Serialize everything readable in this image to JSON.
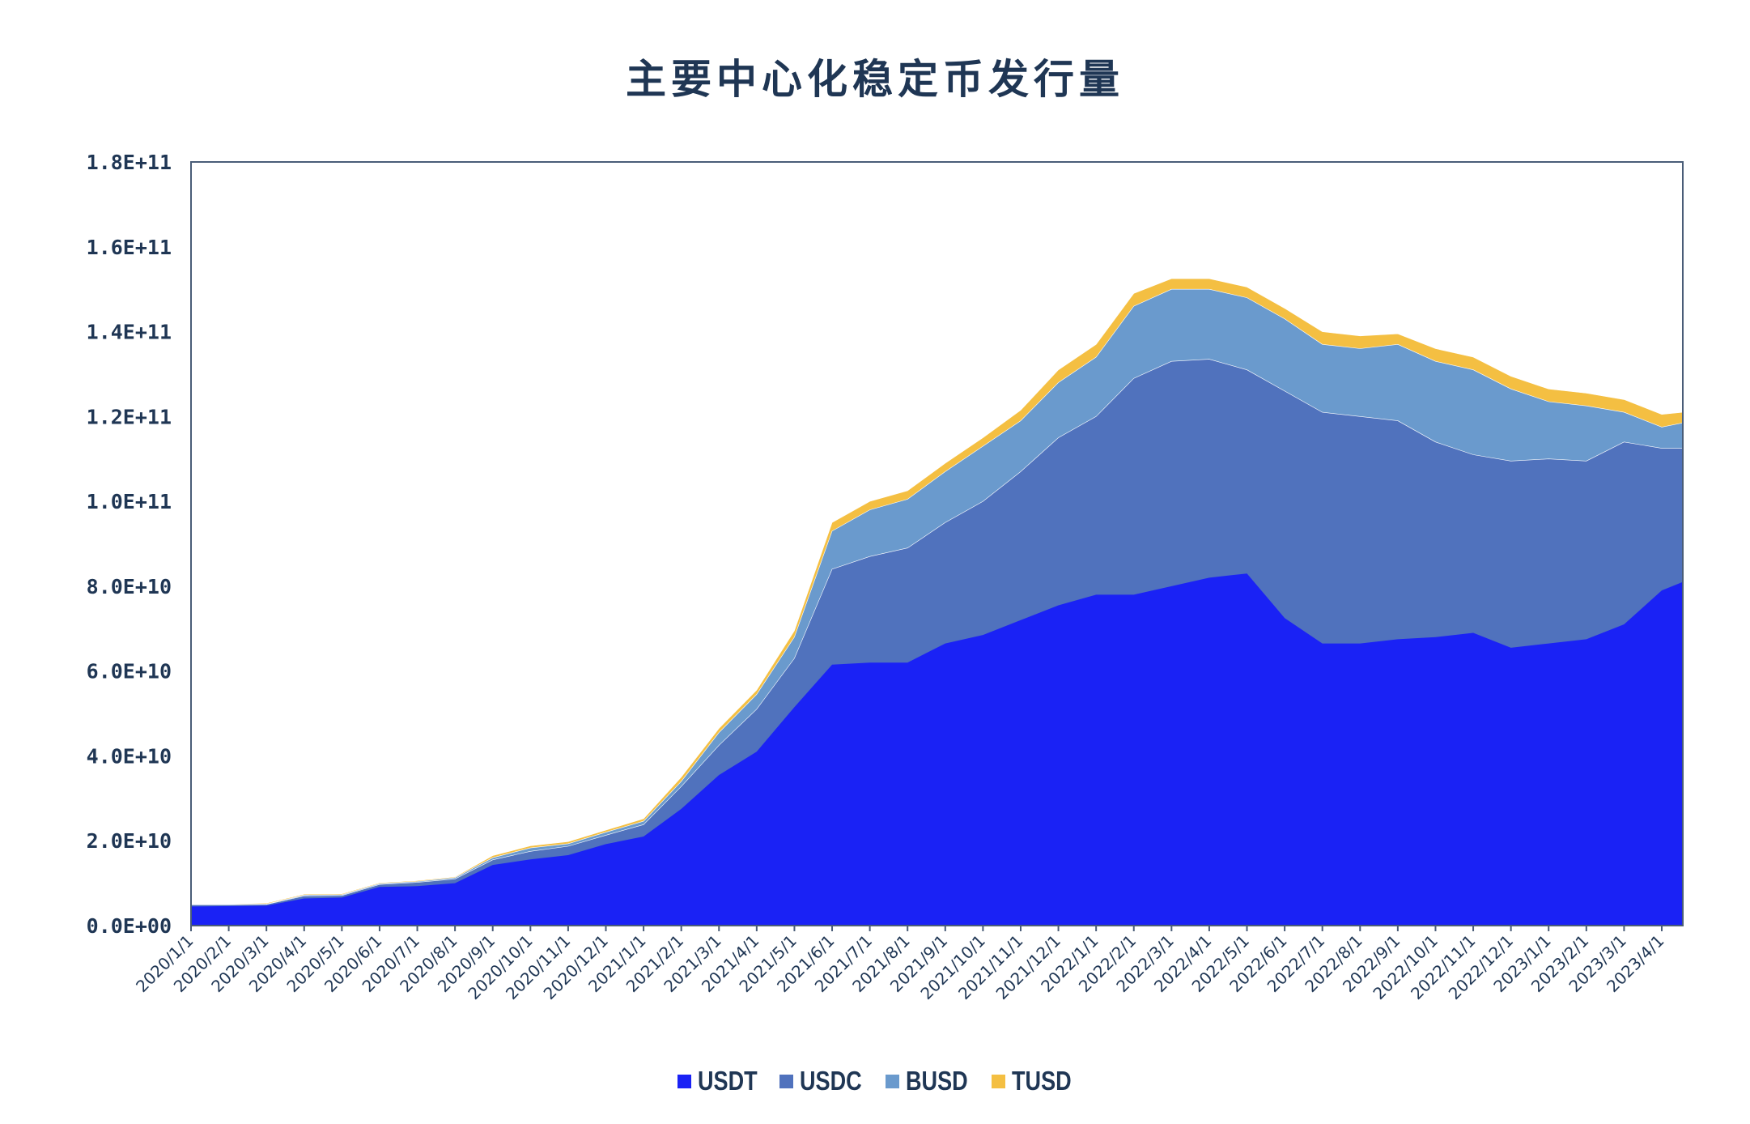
{
  "title": "主要中心化稳定币发行量",
  "colors": {
    "USDT": "#1a22f5",
    "USDC": "#5072bd",
    "BUSD": "#6a9acd",
    "TUSD": "#f4bf42",
    "axis": "#4a5d78",
    "text": "#1f3654"
  },
  "legend": [
    {
      "name": "USDT",
      "color": "#1a22f5"
    },
    {
      "name": "USDC",
      "color": "#5072bd"
    },
    {
      "name": "BUSD",
      "color": "#6a9acd"
    },
    {
      "name": "TUSD",
      "color": "#f4bf42"
    }
  ],
  "y_ticks": [
    "0.0E+00",
    "2.0E+10",
    "4.0E+10",
    "6.0E+10",
    "8.0E+10",
    "1.0E+11",
    "1.2E+11",
    "1.4E+11",
    "1.6E+11",
    "1.8E+11"
  ],
  "x_ticks": [
    "2020/1/1",
    "2020/2/1",
    "2020/3/1",
    "2020/4/1",
    "2020/5/1",
    "2020/6/1",
    "2020/7/1",
    "2020/8/1",
    "2020/9/1",
    "2020/10/1",
    "2020/11/1",
    "2020/12/1",
    "2021/1/1",
    "2021/2/1",
    "2021/3/1",
    "2021/4/1",
    "2021/5/1",
    "2021/6/1",
    "2021/7/1",
    "2021/8/1",
    "2021/9/1",
    "2021/10/1",
    "2021/11/1",
    "2021/12/1",
    "2022/1/1",
    "2022/2/1",
    "2022/3/1",
    "2022/4/1",
    "2022/5/1",
    "2022/6/1",
    "2022/7/1",
    "2022/8/1",
    "2022/9/1",
    "2022/10/1",
    "2022/11/1",
    "2022/12/1",
    "2023/1/1",
    "2023/2/1",
    "2023/3/1",
    "2023/4/1"
  ],
  "chart_data": {
    "type": "area",
    "stacked": true,
    "title": "主要中心化稳定币发行量",
    "xlabel": "",
    "ylabel": "",
    "ylim": [
      0,
      180000000000
    ],
    "grid": false,
    "legend_position": "bottom",
    "unit_note": "series values below in billions (1e9 USD)",
    "x": [
      "2020/1/1",
      "2020/2/1",
      "2020/3/1",
      "2020/4/1",
      "2020/5/1",
      "2020/6/1",
      "2020/7/1",
      "2020/8/1",
      "2020/9/1",
      "2020/10/1",
      "2020/11/1",
      "2020/12/1",
      "2021/1/1",
      "2021/2/1",
      "2021/3/1",
      "2021/4/1",
      "2021/5/1",
      "2021/6/1",
      "2021/7/1",
      "2021/8/1",
      "2021/9/1",
      "2021/10/1",
      "2021/11/1",
      "2021/12/1",
      "2022/1/1",
      "2022/2/1",
      "2022/3/1",
      "2022/4/1",
      "2022/5/1",
      "2022/6/1",
      "2022/7/1",
      "2022/8/1",
      "2022/9/1",
      "2022/10/1",
      "2022/11/1",
      "2022/12/1",
      "2023/1/1",
      "2023/2/1",
      "2023/3/1",
      "2023/4/1",
      "2023/4/19"
    ],
    "series": [
      {
        "name": "USDT",
        "values": [
          4.5,
          4.6,
          4.7,
          6.4,
          6.6,
          9.1,
          9.3,
          10.0,
          14.3,
          15.6,
          16.6,
          19.2,
          21.0,
          27.5,
          35.5,
          41.0,
          51.5,
          61.5,
          62.0,
          62.0,
          66.5,
          68.5,
          72.0,
          75.5,
          78.0,
          78.0,
          80.0,
          82.0,
          83.0,
          72.5,
          66.5,
          66.5,
          67.5,
          68.0,
          69.0,
          65.5,
          66.5,
          67.5,
          71.0,
          79.0,
          81.0
        ]
      },
      {
        "name": "USDC",
        "values": [
          0.4,
          0.3,
          0.3,
          0.6,
          0.5,
          0.6,
          0.9,
          1.0,
          1.2,
          1.9,
          2.1,
          2.1,
          2.8,
          5.3,
          7.0,
          10.0,
          11.5,
          22.5,
          25.0,
          27.0,
          28.5,
          31.5,
          35.0,
          39.5,
          42.0,
          51.0,
          53.0,
          51.5,
          48.0,
          53.5,
          54.5,
          53.5,
          51.5,
          46.0,
          42.0,
          44.0,
          43.5,
          42.0,
          43.0,
          33.5,
          31.5
        ]
      },
      {
        "name": "BUSD",
        "values": [
          0.1,
          0.1,
          0.1,
          0.2,
          0.2,
          0.2,
          0.2,
          0.3,
          0.5,
          0.8,
          0.6,
          0.7,
          0.8,
          1.2,
          3.0,
          3.5,
          5.0,
          9.0,
          11.0,
          11.5,
          12.0,
          13.0,
          12.0,
          13.0,
          14.0,
          17.0,
          17.0,
          16.5,
          17.0,
          17.0,
          16.0,
          16.0,
          18.0,
          19.0,
          20.0,
          17.0,
          13.5,
          13.0,
          7.0,
          5.0,
          6.0
        ]
      },
      {
        "name": "TUSD",
        "values": [
          0.1,
          0.1,
          0.2,
          0.2,
          0.2,
          0.2,
          0.2,
          0.2,
          0.5,
          0.5,
          0.5,
          0.5,
          0.6,
          1.0,
          1.0,
          1.0,
          1.5,
          2.0,
          2.0,
          2.0,
          2.0,
          2.0,
          2.5,
          3.0,
          3.0,
          3.0,
          2.5,
          2.5,
          2.5,
          2.5,
          3.0,
          3.0,
          2.5,
          3.0,
          3.0,
          3.0,
          3.0,
          3.0,
          3.0,
          3.0,
          2.5
        ]
      }
    ]
  }
}
